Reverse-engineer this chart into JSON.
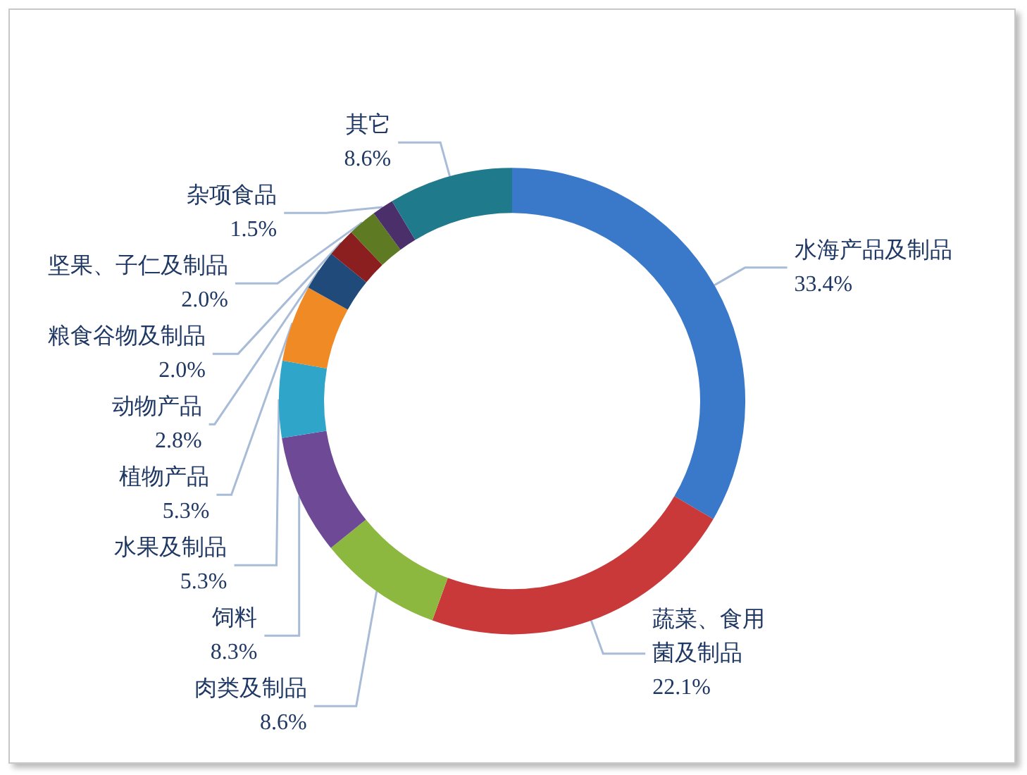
{
  "chart_data": {
    "type": "donut",
    "categories": [
      "水海产品及制品",
      "蔬菜、食用菌及制品",
      "肉类及制品",
      "饲料",
      "水果及制品",
      "植物产品",
      "动物产品",
      "粮食谷物及制品",
      "坚果、子仁及制品",
      "杂项食品",
      "其它"
    ],
    "values": [
      33.4,
      22.1,
      8.6,
      8.3,
      5.3,
      5.3,
      2.8,
      2.0,
      2.0,
      1.5,
      8.6
    ],
    "value_labels": [
      "33.4%",
      "22.1%",
      "8.6%",
      "8.3%",
      "5.3%",
      "5.3%",
      "2.8%",
      "2.0%",
      "2.0%",
      "1.5%",
      "8.6%"
    ],
    "colors": [
      "#3a78c9",
      "#c9393a",
      "#8db83f",
      "#6e4a96",
      "#2fa6c9",
      "#f08a24",
      "#1f4a7a",
      "#8b1f1f",
      "#5e7a23",
      "#4a2f6b",
      "#1f7a8c"
    ],
    "legend": false
  }
}
